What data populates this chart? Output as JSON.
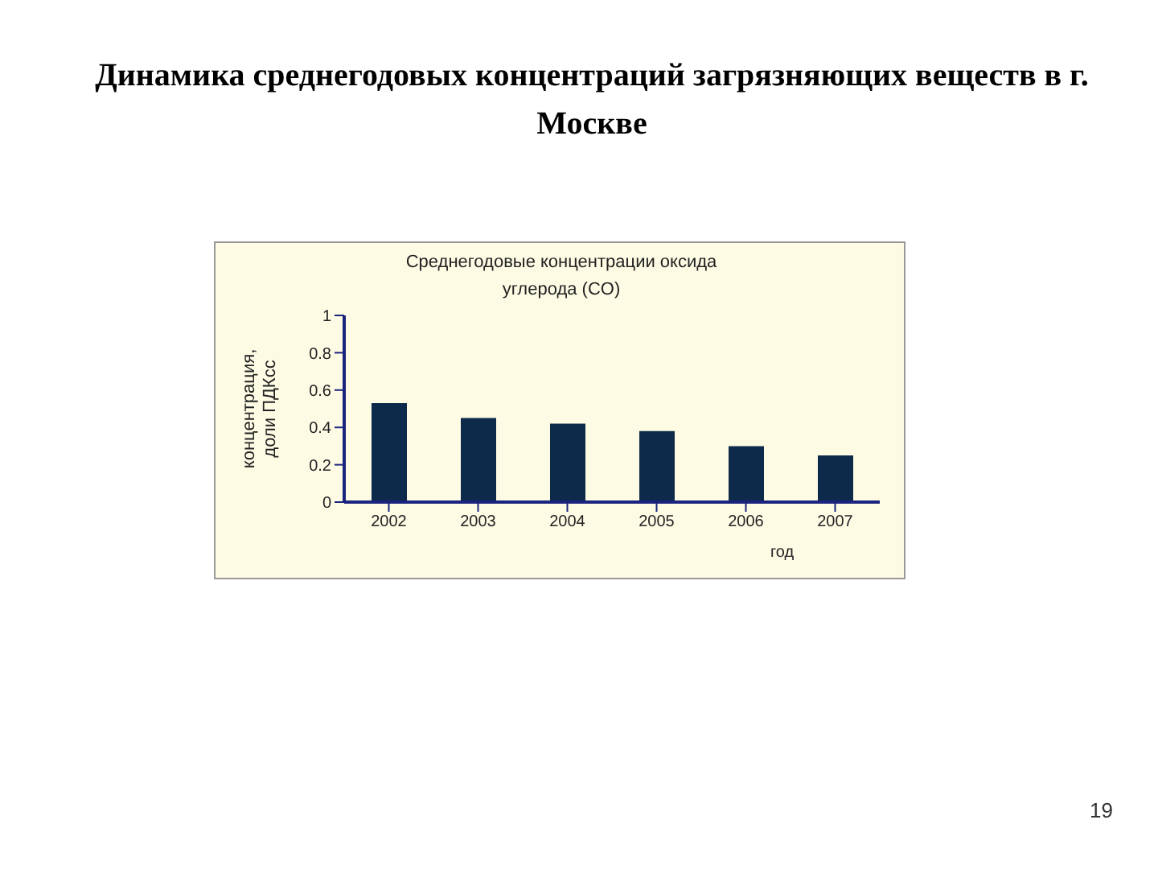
{
  "chart_data": {
    "type": "bar",
    "title": "Динамика среднегодовых концентраций загрязняющих веществ в г. Москве",
    "subtitle": "Среднегодовые концентрации оксида углерода (CO)",
    "xlabel": "год",
    "ylabel": "концентрация,\nдоли ПДКсс",
    "categories": [
      "2002",
      "2003",
      "2004",
      "2005",
      "2006",
      "2007"
    ],
    "values": [
      0.53,
      0.45,
      0.42,
      0.38,
      0.3,
      0.25
    ],
    "color": "#0d2a4a",
    "ylim": [
      0,
      1
    ],
    "yticks": [
      0,
      0.2,
      0.4,
      0.6,
      0.8,
      1
    ],
    "annotations": [
      "19"
    ]
  }
}
